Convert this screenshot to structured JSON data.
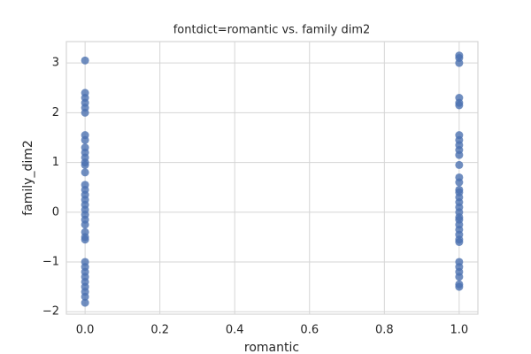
{
  "chart_data": {
    "type": "scatter",
    "title": "fontdict=romantic vs. family dim2",
    "xlabel": "romantic",
    "ylabel": "family_dim2",
    "x": [
      0,
      0,
      0,
      0,
      0,
      0,
      0,
      0,
      0,
      0,
      0,
      0,
      0,
      0,
      0,
      0,
      0,
      0,
      0,
      0,
      0,
      0,
      0,
      0,
      0,
      0,
      0,
      0,
      0,
      0,
      0,
      0,
      0,
      0,
      0,
      1,
      1,
      1,
      1,
      1,
      1,
      1,
      1,
      1,
      1,
      1,
      1,
      1,
      1,
      1,
      1,
      1,
      1,
      1,
      1,
      1,
      1,
      1,
      1,
      1,
      1,
      1,
      1,
      1,
      1,
      1,
      1,
      1
    ],
    "y": [
      3.05,
      2.4,
      2.3,
      2.2,
      2.1,
      2.0,
      1.55,
      1.45,
      1.3,
      1.2,
      1.1,
      1.0,
      0.95,
      0.8,
      0.55,
      0.45,
      0.35,
      0.25,
      0.15,
      0.05,
      -0.05,
      -0.15,
      -0.25,
      -0.4,
      -0.5,
      -0.55,
      -1.0,
      -1.1,
      -1.2,
      -1.3,
      -1.4,
      -1.5,
      -1.6,
      -1.7,
      -1.82,
      3.15,
      3.1,
      3.0,
      2.3,
      2.2,
      2.15,
      1.55,
      1.45,
      1.35,
      1.25,
      1.15,
      0.95,
      0.7,
      0.6,
      0.45,
      0.4,
      0.3,
      0.2,
      0.1,
      0.0,
      -0.1,
      -0.15,
      -0.25,
      -0.35,
      -0.45,
      -0.55,
      -0.6,
      -1.0,
      -1.1,
      -1.2,
      -1.3,
      -1.45,
      -1.5
    ],
    "color": "#4c72b0",
    "xlim": [
      -0.05,
      1.05
    ],
    "ylim": [
      -2.05,
      3.43
    ],
    "xticks": [
      {
        "value": 0,
        "label": "0.0"
      },
      {
        "value": 0.2,
        "label": "0.2"
      },
      {
        "value": 0.4,
        "label": "0.4"
      },
      {
        "value": 0.6,
        "label": "0.6"
      },
      {
        "value": 0.8,
        "label": "0.8"
      },
      {
        "value": 1,
        "label": "1.0"
      }
    ],
    "yticks": [
      {
        "value": -2,
        "label": "−2"
      },
      {
        "value": -1,
        "label": "−1"
      },
      0,
      1,
      2,
      3
    ],
    "grid": true
  }
}
